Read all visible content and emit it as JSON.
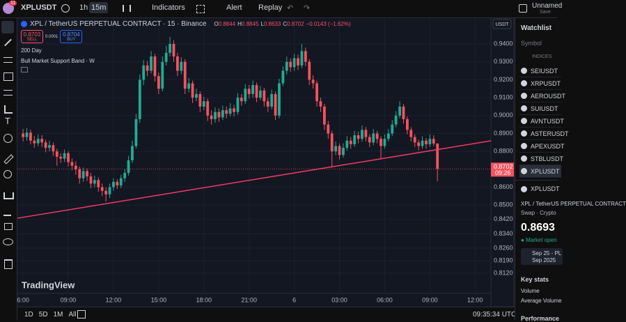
{
  "toolbar": {
    "badge": "11",
    "symbol": "XPLUSDT",
    "intervals": [
      "1h",
      "15m"
    ],
    "indicators": "Indicators",
    "alert": "Alert",
    "replay": "Replay",
    "layout_name": "Unnamed",
    "save": "Save"
  },
  "legend": {
    "title": "XPL / TetherUS PERPETUAL CONTRACT · 15 · Binance",
    "ohlc_labels": [
      "O",
      "H",
      "L",
      "C"
    ],
    "ohlc_values": [
      "0.8844",
      "0.8845",
      "0.8633",
      "0.8702"
    ],
    "change": "−0.0143 (−1.62%)",
    "sell": "0.8703",
    "sell_label": "SELL",
    "spread": "0.0001",
    "buy": "0.8704",
    "buy_label": "BUY",
    "indicators": [
      "200 Day",
      "Bull Market Support Band · W"
    ]
  },
  "chart_data": {
    "type": "candlestick",
    "currency": "USDT",
    "up_color": "#22ab94",
    "down_color": "#f7525f",
    "candles": [
      [
        0.89,
        0.8925,
        0.8855,
        0.888
      ],
      [
        0.888,
        0.893,
        0.886,
        0.8905
      ],
      [
        0.8905,
        0.892,
        0.884,
        0.886
      ],
      [
        0.886,
        0.8885,
        0.882,
        0.8845
      ],
      [
        0.8845,
        0.8895,
        0.883,
        0.887
      ],
      [
        0.887,
        0.889,
        0.8825,
        0.885
      ],
      [
        0.885,
        0.8865,
        0.8795,
        0.882
      ],
      [
        0.882,
        0.886,
        0.88,
        0.8835
      ],
      [
        0.8835,
        0.885,
        0.8775,
        0.88
      ],
      [
        0.88,
        0.8815,
        0.872,
        0.877
      ],
      [
        0.877,
        0.879,
        0.8735,
        0.876
      ],
      [
        0.876,
        0.881,
        0.874,
        0.879
      ],
      [
        0.879,
        0.88,
        0.8715,
        0.874
      ],
      [
        0.874,
        0.876,
        0.8695,
        0.872
      ],
      [
        0.872,
        0.8745,
        0.867,
        0.87
      ],
      [
        0.87,
        0.8715,
        0.862,
        0.865
      ],
      [
        0.865,
        0.871,
        0.863,
        0.869
      ],
      [
        0.869,
        0.8705,
        0.8635,
        0.866
      ],
      [
        0.866,
        0.868,
        0.8595,
        0.862
      ],
      [
        0.862,
        0.8665,
        0.86,
        0.864
      ],
      [
        0.864,
        0.8655,
        0.8575,
        0.86
      ],
      [
        0.86,
        0.862,
        0.855,
        0.858
      ],
      [
        0.858,
        0.86,
        0.852,
        0.856
      ],
      [
        0.856,
        0.862,
        0.854,
        0.86
      ],
      [
        0.86,
        0.865,
        0.858,
        0.863
      ],
      [
        0.863,
        0.8645,
        0.859,
        0.861
      ],
      [
        0.861,
        0.867,
        0.8595,
        0.865
      ],
      [
        0.865,
        0.87,
        0.863,
        0.868
      ],
      [
        0.868,
        0.8775,
        0.8665,
        0.875
      ],
      [
        0.875,
        0.886,
        0.8735,
        0.883
      ],
      [
        0.883,
        0.901,
        0.8815,
        0.898
      ],
      [
        0.898,
        0.923,
        0.896,
        0.92
      ],
      [
        0.92,
        0.931,
        0.917,
        0.928
      ],
      [
        0.928,
        0.9305,
        0.922,
        0.925
      ],
      [
        0.925,
        0.936,
        0.9235,
        0.933
      ],
      [
        0.933,
        0.9345,
        0.919,
        0.922
      ],
      [
        0.922,
        0.924,
        0.912,
        0.915
      ],
      [
        0.915,
        0.933,
        0.9135,
        0.93
      ],
      [
        0.93,
        0.939,
        0.928,
        0.935
      ],
      [
        0.935,
        0.944,
        0.933,
        0.94
      ],
      [
        0.94,
        0.942,
        0.93,
        0.933
      ],
      [
        0.933,
        0.935,
        0.922,
        0.925
      ],
      [
        0.925,
        0.9325,
        0.923,
        0.93
      ],
      [
        0.93,
        0.9315,
        0.912,
        0.915
      ],
      [
        0.915,
        0.921,
        0.913,
        0.918
      ],
      [
        0.918,
        0.9195,
        0.907,
        0.91
      ],
      [
        0.91,
        0.915,
        0.908,
        0.912
      ],
      [
        0.912,
        0.9135,
        0.902,
        0.905
      ],
      [
        0.905,
        0.9105,
        0.903,
        0.908
      ],
      [
        0.908,
        0.9095,
        0.897,
        0.9
      ],
      [
        0.9,
        0.903,
        0.895,
        0.898
      ],
      [
        0.898,
        0.9045,
        0.896,
        0.902
      ],
      [
        0.902,
        0.904,
        0.8965,
        0.899
      ],
      [
        0.899,
        0.9055,
        0.8975,
        0.903
      ],
      [
        0.903,
        0.905,
        0.8985,
        0.901
      ],
      [
        0.901,
        0.907,
        0.8995,
        0.904
      ],
      [
        0.904,
        0.906,
        0.8995,
        0.902
      ],
      [
        0.902,
        0.9125,
        0.9005,
        0.91
      ],
      [
        0.91,
        0.912,
        0.9055,
        0.908
      ],
      [
        0.908,
        0.9175,
        0.9065,
        0.915
      ],
      [
        0.915,
        0.917,
        0.9095,
        0.912
      ],
      [
        0.912,
        0.9195,
        0.91,
        0.917
      ],
      [
        0.917,
        0.9185,
        0.9075,
        0.91
      ],
      [
        0.91,
        0.9165,
        0.9085,
        0.914
      ],
      [
        0.914,
        0.9155,
        0.905,
        0.908
      ],
      [
        0.908,
        0.91,
        0.902,
        0.905
      ],
      [
        0.905,
        0.9145,
        0.9035,
        0.912
      ],
      [
        0.912,
        0.9135,
        0.8975,
        0.9
      ],
      [
        0.9,
        0.9205,
        0.8985,
        0.918
      ],
      [
        0.918,
        0.9275,
        0.9165,
        0.925
      ],
      [
        0.925,
        0.933,
        0.923,
        0.93
      ],
      [
        0.93,
        0.932,
        0.9245,
        0.927
      ],
      [
        0.927,
        0.9345,
        0.925,
        0.932
      ],
      [
        0.932,
        0.934,
        0.9255,
        0.928
      ],
      [
        0.928,
        0.94,
        0.9265,
        0.936
      ],
      [
        0.936,
        0.938,
        0.9275,
        0.93
      ],
      [
        0.93,
        0.9315,
        0.917,
        0.92
      ],
      [
        0.92,
        0.9225,
        0.915,
        0.918
      ],
      [
        0.918,
        0.9195,
        0.905,
        0.908
      ],
      [
        0.908,
        0.91,
        0.902,
        0.905
      ],
      [
        0.905,
        0.9065,
        0.892,
        0.895
      ],
      [
        0.895,
        0.897,
        0.887,
        0.89
      ],
      [
        0.89,
        0.8915,
        0.871,
        0.88
      ],
      [
        0.88,
        0.8855,
        0.878,
        0.883
      ],
      [
        0.883,
        0.8845,
        0.8755,
        0.878
      ],
      [
        0.878,
        0.8845,
        0.8765,
        0.882
      ],
      [
        0.882,
        0.8885,
        0.8805,
        0.886
      ],
      [
        0.886,
        0.888,
        0.8815,
        0.884
      ],
      [
        0.884,
        0.8915,
        0.8825,
        0.889
      ],
      [
        0.889,
        0.891,
        0.8845,
        0.887
      ],
      [
        0.887,
        0.8945,
        0.8855,
        0.892
      ],
      [
        0.892,
        0.8935,
        0.8855,
        0.888
      ],
      [
        0.888,
        0.8895,
        0.8825,
        0.885
      ],
      [
        0.885,
        0.8925,
        0.8835,
        0.89
      ],
      [
        0.89,
        0.8915,
        0.8845,
        0.887
      ],
      [
        0.887,
        0.8885,
        0.876,
        0.883
      ],
      [
        0.883,
        0.8895,
        0.8815,
        0.887
      ],
      [
        0.887,
        0.8925,
        0.8855,
        0.89
      ],
      [
        0.89,
        0.8975,
        0.8885,
        0.895
      ],
      [
        0.895,
        0.9025,
        0.8935,
        0.9
      ],
      [
        0.9,
        0.908,
        0.8985,
        0.905
      ],
      [
        0.905,
        0.9065,
        0.8955,
        0.898
      ],
      [
        0.898,
        0.8995,
        0.8895,
        0.892
      ],
      [
        0.892,
        0.8935,
        0.8855,
        0.888
      ],
      [
        0.888,
        0.8895,
        0.8825,
        0.885
      ],
      [
        0.885,
        0.8865,
        0.8805,
        0.883
      ],
      [
        0.883,
        0.8885,
        0.8815,
        0.886
      ],
      [
        0.886,
        0.8875,
        0.8815,
        0.884
      ],
      [
        0.884,
        0.8895,
        0.8825,
        0.887
      ],
      [
        0.887,
        0.889,
        0.883,
        0.8844
      ],
      [
        0.8844,
        0.8845,
        0.8633,
        0.8702
      ]
    ],
    "xlim": [
      -1.5,
      124.2
    ],
    "xticks": [
      {
        "value": 0,
        "label": "6:00"
      },
      {
        "value": 12,
        "label": "09:00"
      },
      {
        "value": 24,
        "label": "12:00"
      },
      {
        "value": 36,
        "label": "15:00"
      },
      {
        "value": 48,
        "label": "18:00"
      },
      {
        "value": 60,
        "label": "21:00"
      },
      {
        "value": 72,
        "label": "6"
      },
      {
        "value": 84,
        "label": "03:00"
      },
      {
        "value": 96,
        "label": "06:00"
      },
      {
        "value": 108,
        "label": "09:00"
      },
      {
        "value": 120,
        "label": "12:00"
      }
    ],
    "ylim": [
      0.8007,
      0.9544
    ],
    "yticks": [
      {
        "value": 0.94,
        "label": "0.9400"
      },
      {
        "value": 0.93,
        "label": "0.9300"
      },
      {
        "value": 0.92,
        "label": "0.9200"
      },
      {
        "value": 0.91,
        "label": "0.9100"
      },
      {
        "value": 0.9,
        "label": "0.9000"
      },
      {
        "value": 0.89,
        "label": "0.8900"
      },
      {
        "value": 0.88,
        "label": "0.8800"
      },
      {
        "value": 0.86,
        "label": "0.8600"
      },
      {
        "value": 0.85,
        "label": "0.8500"
      },
      {
        "value": 0.842,
        "label": "0.8420"
      },
      {
        "value": 0.834,
        "label": "0.8340"
      },
      {
        "value": 0.826,
        "label": "0.8260"
      },
      {
        "value": 0.819,
        "label": "0.8190"
      },
      {
        "value": 0.812,
        "label": "0.8120"
      }
    ],
    "grid": true,
    "trend_line": {
      "x": [
        -1.5,
        124.2
      ],
      "values": [
        0.8427,
        0.8859
      ],
      "color": "#f23a64"
    },
    "last_price": 0.8702,
    "countdown": "09:26",
    "watermark": "TradingView"
  },
  "bottom_bar": {
    "ranges": [
      "1D",
      "5D",
      "1M",
      "All"
    ],
    "clock": "09:35:34 UTC"
  },
  "watchlist": {
    "title": "Watchlist",
    "column": "Symbol",
    "section": "INDICES",
    "symbols": [
      "SEIUSDT",
      "XRPUSDT",
      "AEROUSDT",
      "SUIUSDT",
      "AVNTUSDT",
      "ASTERUSDT",
      "APEXUSDT",
      "STBLUSDT",
      "XPLUSDT"
    ]
  },
  "details": {
    "symbol": "XPLUSDT",
    "name": "XPL / TetherUS PERPETUAL CONTRACT",
    "kind": "Swap · Crypto",
    "price": "0.8693",
    "status": "Market open",
    "event": "Sep 25 - PL",
    "event_date": "Sep 2025",
    "key_stats": "Key stats",
    "volume": "Volume",
    "average_volume": "Average Volume",
    "performance": "Performance"
  }
}
